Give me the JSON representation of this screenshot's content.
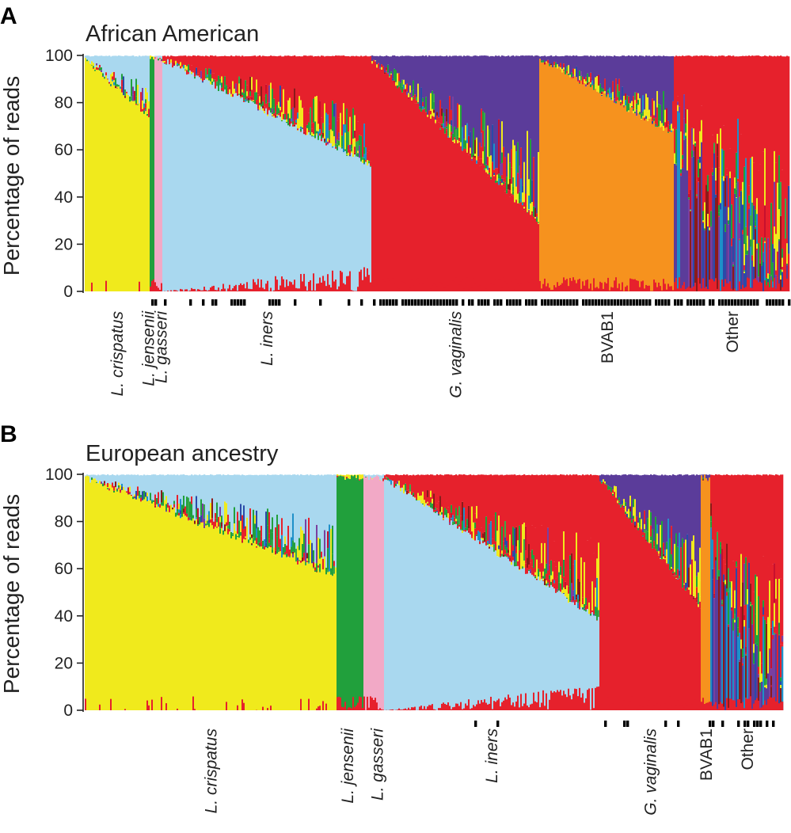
{
  "chart_data": [
    {
      "type": "stacked-bar",
      "panel": "A",
      "title": "African American",
      "ylabel": "Percentage of reads",
      "ylim": [
        0,
        100
      ],
      "yticks": [
        0,
        20,
        40,
        60,
        80,
        100
      ],
      "categories": [
        "L. crispatus",
        "L. jensenii",
        "L. gasseri",
        "L. iners",
        "G. vaginalis",
        "BVAB1",
        "Other"
      ],
      "italic_categories": [
        true,
        true,
        true,
        true,
        true,
        false,
        false
      ],
      "group_spans": [
        0.0,
        0.092,
        0.098,
        0.11,
        0.406,
        0.646,
        0.836,
        1.0
      ],
      "dominant_start": [
        100,
        100,
        100,
        100,
        100,
        100,
        80
      ],
      "dominant_end": [
        75,
        100,
        100,
        55,
        30,
        68,
        20
      ],
      "secondary": [
        "L. iners",
        "L. crispatus",
        "L. iners",
        "G. vaginalis",
        "Other",
        "Other",
        "G. vaginalis"
      ],
      "marker_density": [
        0.08,
        0.3,
        0.3,
        0.35,
        0.9,
        0.95,
        0.85
      ]
    },
    {
      "type": "stacked-bar",
      "panel": "B",
      "title": "European ancestry",
      "ylabel": "Percentage of reads",
      "ylim": [
        0,
        100
      ],
      "yticks": [
        0,
        20,
        40,
        60,
        80,
        100
      ],
      "categories": [
        "L. crispatus",
        "L. jensenii",
        "L. gasseri",
        "L. iners",
        "G. vaginalis",
        "BVAB1",
        "Other"
      ],
      "italic_categories": [
        true,
        true,
        true,
        true,
        true,
        false,
        false
      ],
      "group_spans": [
        0.0,
        0.361,
        0.4,
        0.428,
        0.736,
        0.882,
        0.896,
        1.0
      ],
      "dominant_start": [
        100,
        100,
        100,
        100,
        100,
        100,
        80
      ],
      "dominant_end": [
        58,
        100,
        100,
        40,
        45,
        100,
        30
      ],
      "secondary": [
        "L. iners",
        "L. crispatus",
        "L. iners",
        "G. vaginalis",
        "Other",
        "Other",
        "G. vaginalis"
      ],
      "marker_density": [
        0.005,
        0.03,
        0.0,
        0.02,
        0.12,
        0.35,
        0.2
      ]
    }
  ],
  "palette": {
    "L. crispatus": "#f0ea1c",
    "L. jensenii": "#21a03c",
    "L. gasseri": "#f2a9c6",
    "L. iners": "#a9d8ef",
    "G. vaginalis": "#e6212c",
    "BVAB1": "#f6921e",
    "Other": "#5b3c9a",
    "extra": [
      "#2b4aa8",
      "#8b1a1a",
      "#7a3fa0",
      "#1e90c8",
      "#3aa84a",
      "#c8102e"
    ]
  }
}
